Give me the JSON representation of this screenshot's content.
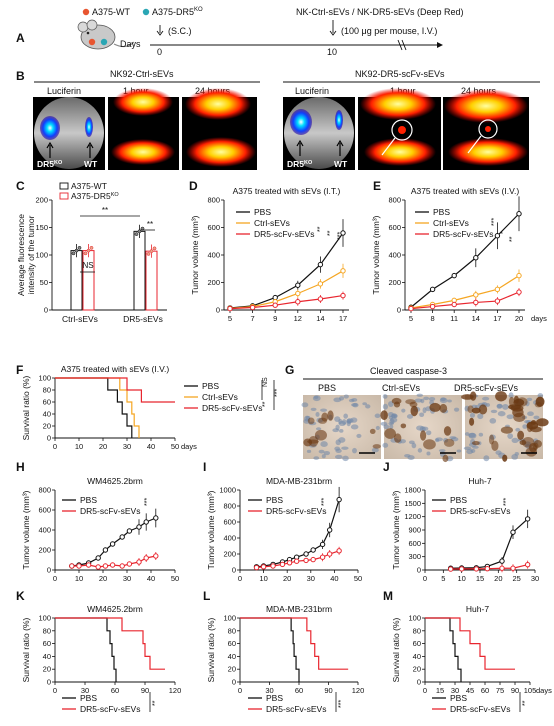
{
  "colors": {
    "wt": "#e85530",
    "ko": "#2aa6b4",
    "pbs": "#111111",
    "ctrl": "#f5a623",
    "dr5": "#e8262f",
    "axis": "#111111"
  },
  "panels": {
    "A": "A",
    "B": "B",
    "C": "C",
    "D": "D",
    "E": "E",
    "F": "F",
    "G": "G",
    "H": "H",
    "I": "I",
    "J": "J",
    "K": "K",
    "L": "L",
    "M": "M"
  },
  "A": {
    "legend_wt": "A375-WT",
    "legend_ko": "A375-DR5",
    "legend_ko_sup": "KO",
    "header": "NK-Ctrl-sEVs / NK-DR5-sEVs (Deep Red)",
    "days_label": "Days",
    "day0": "0",
    "day0_note": "(S.C.)",
    "day10": "10",
    "day10_note": "(100 μg per mouse, I.V.)",
    "icons": [
      "mouse-icon",
      "tumor-dots-icon"
    ]
  },
  "B": {
    "left_title": "NK92-Ctrl-sEVs",
    "right_title": "NK92-DR5-scFv-sEVs",
    "col_labels": [
      "Luciferin",
      "1 hour",
      "24 hours"
    ],
    "dr5_label": "DR5",
    "dr5_sup": "KO",
    "wt_label": "WT"
  },
  "C": {
    "ylabel_1": "Average fluorescence",
    "ylabel_2": "intensity of the tumor",
    "legend": [
      "A375-WT",
      "A375-DR5"
    ],
    "legend_sup": "KO",
    "yticks": [
      "0",
      "50",
      "100",
      "150",
      "200"
    ],
    "xticks": [
      "Ctrl-sEVs",
      "DR5-sEVs"
    ],
    "sig": [
      "NS",
      "**",
      "**"
    ]
  },
  "D": {
    "title": "A375 treated with sEVs (I.T.)",
    "ylabel": "Tumor volume (mm³)",
    "legend": [
      "PBS",
      "Ctrl-sEVs",
      "DR5-scFv-sEVs"
    ],
    "yticks": [
      "0",
      "200",
      "400",
      "600",
      "800"
    ],
    "xticks": [
      "5",
      "7",
      "9",
      "12",
      "14",
      "17"
    ],
    "sig": [
      "**",
      "**",
      "***"
    ]
  },
  "E": {
    "title": "A375 treated with sEVs (I.V.)",
    "ylabel": "Tumor volume (mm³)",
    "legend": [
      "PBS",
      "Ctrl-sEVs",
      "DR5-scFv-sEVs"
    ],
    "yticks": [
      "0",
      "200",
      "400",
      "600",
      "800"
    ],
    "xticks": [
      "5",
      "8",
      "11",
      "14",
      "17",
      "20"
    ],
    "xunit": "days",
    "sig": [
      "***",
      "*",
      "**"
    ]
  },
  "F": {
    "title": "A375 treated with sEVs (I.V.)",
    "ylabel": "Survival ratio (%)",
    "legend": [
      "PBS",
      "Ctrl-sEVs",
      "DR5-scFv-sEVs"
    ],
    "yticks": [
      "0",
      "20",
      "40",
      "60",
      "80",
      "100"
    ],
    "xticks": [
      "0",
      "10",
      "20",
      "30",
      "40",
      "50"
    ],
    "xunit": "days",
    "sig": [
      "NS",
      "**",
      "***"
    ]
  },
  "G": {
    "title": "Cleaved caspase-3",
    "labels": [
      "PBS",
      "Ctrl-sEVs",
      "DR5-scFv-sEVs"
    ]
  },
  "H": {
    "title": "WM4625.2brm",
    "ylabel": "Tumor volume (mm³)",
    "legend": [
      "PBS",
      "DR5-scFv-sEVs"
    ],
    "yticks": [
      "0",
      "200",
      "400",
      "600",
      "800"
    ],
    "xticks": [
      "0",
      "10",
      "20",
      "30",
      "40",
      "50"
    ],
    "sig": "***"
  },
  "I": {
    "title": "MDA-MB-231brm",
    "ylabel": "Tumor volume (mm³)",
    "legend": [
      "PBS",
      "DR5-scFv-sEVs"
    ],
    "yticks": [
      "0",
      "200",
      "400",
      "600",
      "800",
      "1000"
    ],
    "xticks": [
      "0",
      "10",
      "20",
      "30",
      "40",
      "50"
    ],
    "sig": "***"
  },
  "J": {
    "title": "Huh-7",
    "ylabel": "Tumor volume (mm³)",
    "legend": [
      "PBS",
      "DR5-scFv-sEVs"
    ],
    "yticks": [
      "0",
      "300",
      "600",
      "900",
      "1200",
      "1500",
      "1800"
    ],
    "xticks": [
      "0",
      "5",
      "10",
      "15",
      "20",
      "25",
      "30"
    ],
    "sig": "***"
  },
  "K": {
    "title": "WM4625.2brm",
    "ylabel": "Survival ratio (%)",
    "legend": [
      "PBS",
      "DR5-scFv-sEVs"
    ],
    "yticks": [
      "0",
      "20",
      "40",
      "60",
      "80",
      "100"
    ],
    "xticks": [
      "0",
      "30",
      "60",
      "90",
      "120"
    ],
    "sig": "**"
  },
  "L": {
    "title": "MDA-MB-231brm",
    "ylabel": "Survival ratio (%)",
    "legend": [
      "PBS",
      "DR5-scFv-sEVs"
    ],
    "yticks": [
      "0",
      "20",
      "40",
      "60",
      "80",
      "100"
    ],
    "xticks": [
      "0",
      "30",
      "60",
      "90",
      "120"
    ],
    "sig": "***"
  },
  "M": {
    "title": "Huh-7",
    "ylabel": "Survival ratio (%)",
    "legend": [
      "PBS",
      "DR5-scFv-sEVs"
    ],
    "yticks": [
      "0",
      "20",
      "40",
      "60",
      "80",
      "100"
    ],
    "xticks": [
      "0",
      "15",
      "30",
      "45",
      "60",
      "75",
      "90",
      "105"
    ],
    "xunit": "days",
    "sig": "**"
  },
  "chart_data": [
    {
      "panel": "C",
      "type": "bar",
      "categories": [
        "Ctrl-sEVs",
        "DR5-sEVs"
      ],
      "series": [
        {
          "name": "A375-WT",
          "values": [
            108,
            143
          ]
        },
        {
          "name": "A375-DR5KO",
          "values": [
            108,
            107
          ]
        }
      ],
      "ylim": [
        0,
        200
      ]
    },
    {
      "panel": "D",
      "type": "line",
      "x": [
        5,
        7,
        9,
        12,
        14,
        17
      ],
      "series": [
        {
          "name": "PBS",
          "values": [
            15,
            30,
            90,
            180,
            330,
            560
          ]
        },
        {
          "name": "Ctrl-sEVs",
          "values": [
            12,
            25,
            60,
            120,
            190,
            285
          ]
        },
        {
          "name": "DR5-scFv-sEVs",
          "values": [
            10,
            18,
            35,
            60,
            80,
            105
          ]
        }
      ],
      "ylim": [
        0,
        800
      ]
    },
    {
      "panel": "E",
      "type": "line",
      "x": [
        5,
        8,
        11,
        14,
        17,
        20
      ],
      "series": [
        {
          "name": "PBS",
          "values": [
            20,
            150,
            250,
            380,
            540,
            700
          ]
        },
        {
          "name": "Ctrl-sEVs",
          "values": [
            15,
            40,
            70,
            110,
            150,
            250
          ]
        },
        {
          "name": "DR5-scFv-sEVs",
          "values": [
            10,
            25,
            40,
            55,
            65,
            130
          ]
        }
      ],
      "ylim": [
        0,
        800
      ]
    },
    {
      "panel": "F",
      "type": "line",
      "x": [
        0,
        50
      ],
      "series": [
        {
          "name": "PBS",
          "steps": [
            [
              0,
              100
            ],
            [
              22,
              100
            ],
            [
              22,
              80
            ],
            [
              26,
              80
            ],
            [
              26,
              60
            ],
            [
              28,
              60
            ],
            [
              28,
              40
            ],
            [
              30,
              40
            ],
            [
              30,
              20
            ],
            [
              32,
              20
            ],
            [
              32,
              0
            ]
          ]
        },
        {
          "name": "Ctrl-sEVs",
          "steps": [
            [
              0,
              100
            ],
            [
              27,
              100
            ],
            [
              27,
              80
            ],
            [
              30,
              80
            ],
            [
              30,
              60
            ],
            [
              32,
              60
            ],
            [
              32,
              40
            ],
            [
              33,
              40
            ],
            [
              33,
              20
            ],
            [
              35,
              20
            ],
            [
              35,
              0
            ]
          ]
        },
        {
          "name": "DR5-scFv-sEVs",
          "steps": [
            [
              0,
              100
            ],
            [
              30,
              100
            ],
            [
              30,
              80
            ],
            [
              36,
              80
            ],
            [
              36,
              60
            ],
            [
              50,
              60
            ]
          ]
        }
      ],
      "ylim": [
        0,
        100
      ]
    },
    {
      "panel": "H",
      "type": "line",
      "x": [
        7,
        10,
        14,
        18,
        21,
        24,
        28,
        31,
        35,
        38,
        42
      ],
      "series": [
        {
          "name": "PBS",
          "values": [
            40,
            50,
            70,
            120,
            200,
            260,
            330,
            390,
            430,
            480,
            520
          ]
        },
        {
          "name": "DR5-scFv-sEVs",
          "values": [
            40,
            40,
            50,
            30,
            40,
            50,
            40,
            60,
            80,
            120,
            140
          ]
        }
      ],
      "ylim": [
        0,
        800
      ]
    },
    {
      "panel": "I",
      "type": "line",
      "x": [
        7,
        10,
        14,
        18,
        21,
        24,
        28,
        31,
        35,
        38,
        42
      ],
      "series": [
        {
          "name": "PBS",
          "values": [
            40,
            50,
            70,
            100,
            130,
            160,
            200,
            250,
            320,
            500,
            880
          ]
        },
        {
          "name": "DR5-scFv-sEVs",
          "values": [
            30,
            40,
            50,
            70,
            90,
            110,
            120,
            130,
            160,
            200,
            240
          ]
        }
      ],
      "ylim": [
        0,
        1000
      ]
    },
    {
      "panel": "J",
      "type": "line",
      "x": [
        7,
        10,
        14,
        17,
        21,
        24,
        28
      ],
      "series": [
        {
          "name": "PBS",
          "values": [
            40,
            45,
            50,
            80,
            200,
            850,
            1150
          ]
        },
        {
          "name": "DR5-scFv-sEVs",
          "values": [
            20,
            25,
            25,
            30,
            40,
            40,
            120
          ]
        }
      ],
      "ylim": [
        0,
        1800
      ]
    },
    {
      "panel": "K",
      "type": "line",
      "x": [
        0,
        120
      ],
      "series": [
        {
          "name": "PBS",
          "steps": [
            [
              0,
              100
            ],
            [
              52,
              100
            ],
            [
              52,
              80
            ],
            [
              55,
              80
            ],
            [
              55,
              60
            ],
            [
              57,
              60
            ],
            [
              57,
              40
            ],
            [
              59,
              40
            ],
            [
              59,
              20
            ],
            [
              61,
              20
            ],
            [
              61,
              0
            ]
          ]
        },
        {
          "name": "DR5-scFv-sEVs",
          "steps": [
            [
              0,
              100
            ],
            [
              67,
              100
            ],
            [
              67,
              80
            ],
            [
              88,
              80
            ],
            [
              88,
              60
            ],
            [
              90,
              60
            ],
            [
              90,
              40
            ],
            [
              95,
              40
            ],
            [
              95,
              20
            ],
            [
              110,
              20
            ]
          ]
        }
      ],
      "ylim": [
        0,
        100
      ]
    },
    {
      "panel": "L",
      "type": "line",
      "x": [
        0,
        120
      ],
      "series": [
        {
          "name": "PBS",
          "steps": [
            [
              0,
              100
            ],
            [
              52,
              100
            ],
            [
              52,
              80
            ],
            [
              54,
              80
            ],
            [
              54,
              60
            ],
            [
              55,
              60
            ],
            [
              55,
              40
            ],
            [
              57,
              40
            ],
            [
              57,
              20
            ],
            [
              60,
              20
            ],
            [
              60,
              0
            ]
          ]
        },
        {
          "name": "DR5-scFv-sEVs",
          "steps": [
            [
              0,
              100
            ],
            [
              68,
              100
            ],
            [
              68,
              80
            ],
            [
              72,
              80
            ],
            [
              72,
              60
            ],
            [
              76,
              60
            ],
            [
              76,
              40
            ],
            [
              80,
              40
            ],
            [
              80,
              20
            ],
            [
              110,
              20
            ]
          ]
        }
      ],
      "ylim": [
        0,
        100
      ]
    },
    {
      "panel": "M",
      "type": "line",
      "x": [
        0,
        105
      ],
      "series": [
        {
          "name": "PBS",
          "steps": [
            [
              0,
              100
            ],
            [
              25,
              100
            ],
            [
              25,
              80
            ],
            [
              28,
              80
            ],
            [
              28,
              60
            ],
            [
              30,
              60
            ],
            [
              30,
              40
            ],
            [
              33,
              40
            ],
            [
              33,
              20
            ],
            [
              36,
              20
            ],
            [
              36,
              0
            ]
          ]
        },
        {
          "name": "DR5-scFv-sEVs",
          "steps": [
            [
              0,
              100
            ],
            [
              35,
              100
            ],
            [
              35,
              80
            ],
            [
              45,
              80
            ],
            [
              45,
              60
            ],
            [
              55,
              60
            ],
            [
              55,
              40
            ],
            [
              60,
              40
            ],
            [
              60,
              20
            ],
            [
              90,
              20
            ]
          ]
        }
      ],
      "ylim": [
        0,
        100
      ]
    }
  ]
}
